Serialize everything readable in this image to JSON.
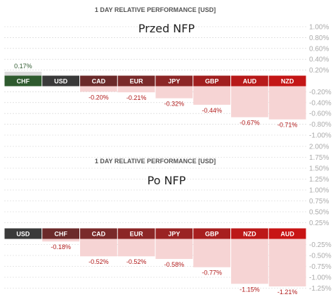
{
  "chart_data": [
    {
      "type": "bar",
      "title": "1 DAY RELATIVE PERFORMANCE  [USD]",
      "subtitle": "Przed NFP",
      "ylim": [
        -1.0,
        1.0
      ],
      "ticks": [
        1.0,
        0.8,
        0.6,
        0.4,
        0.2,
        0.0,
        -0.2,
        -0.4,
        -0.6,
        -0.8,
        -1.0
      ],
      "tick_labels": [
        "1.00%",
        "0.80%",
        "0.60%",
        "0.40%",
        "0.20%",
        "",
        "-0.20%",
        "-0.40%",
        "-0.60%",
        "-0.80%",
        "-1.00%"
      ],
      "grid": true,
      "categories": [
        "CHF",
        "USD",
        "CAD",
        "EUR",
        "JPY",
        "GBP",
        "AUD",
        "NZD"
      ],
      "values": [
        0.17,
        0.0,
        -0.2,
        -0.21,
        -0.32,
        -0.44,
        -0.67,
        -0.71
      ],
      "value_labels": [
        "0.17%",
        "",
        "-0.20%",
        "-0.21%",
        "-0.32%",
        "-0.44%",
        "-0.67%",
        "-0.71%"
      ],
      "colors": [
        "#2e5a2e",
        "#3a3a3a",
        "#6b2a2a",
        "#7a2a2a",
        "#8c2626",
        "#a11f1f",
        "#b81a1a",
        "#c41616"
      ]
    },
    {
      "type": "bar",
      "title": "1 DAY RELATIVE PERFORMANCE  [USD]",
      "subtitle": "Po NFP",
      "ylim": [
        -1.3,
        2.0
      ],
      "ticks": [
        2.0,
        1.75,
        1.5,
        1.25,
        1.0,
        0.75,
        0.5,
        0.25,
        0.0,
        -0.25,
        -0.5,
        -0.75,
        -1.0,
        -1.25
      ],
      "tick_labels": [
        "2.00%",
        "1.75%",
        "1.50%",
        "1.25%",
        "1.00%",
        "0.75%",
        "0.50%",
        "0.25%",
        "",
        "-0.25%",
        "-0.50%",
        "-0.75%",
        "-1.00%",
        "-1.25%"
      ],
      "grid": true,
      "categories": [
        "USD",
        "CHF",
        "CAD",
        "EUR",
        "JPY",
        "GBP",
        "NZD",
        "AUD"
      ],
      "values": [
        0.0,
        -0.18,
        -0.52,
        -0.52,
        -0.58,
        -0.77,
        -1.15,
        -1.21
      ],
      "value_labels": [
        "",
        "-0.18%",
        "-0.52%",
        "-0.52%",
        "-0.58%",
        "-0.77%",
        "-1.15%",
        "-1.21%"
      ],
      "colors": [
        "#3a3a3a",
        "#6b2a2a",
        "#7a2a2a",
        "#8c2626",
        "#9a2323",
        "#a81f1f",
        "#bc1818",
        "#c81414"
      ]
    }
  ]
}
